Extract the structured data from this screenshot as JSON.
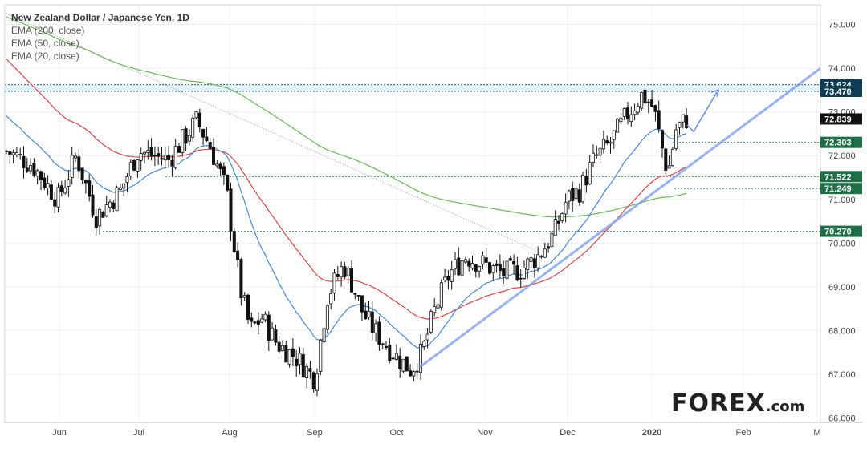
{
  "chart_data": {
    "type": "candlestick",
    "title": "New Zealand Dollar / Japanese Yen, 1D",
    "legend": [
      "EMA (200, close)",
      "EMA (50, close)",
      "EMA (20, close)"
    ],
    "y_ticks": [
      "75.000",
      "74.000",
      "73.000",
      "72.000",
      "71.000",
      "70.000",
      "69.000",
      "68.000",
      "67.000",
      "66.000"
    ],
    "x_ticks": [
      "Jun",
      "Jul",
      "Aug",
      "Sep",
      "Oct",
      "Nov",
      "Dec",
      "2020",
      "Feb",
      "M"
    ],
    "ylim": [
      65.9,
      75.45
    ],
    "levels": [
      {
        "label": "73.624",
        "value": 73.624,
        "style": "dark"
      },
      {
        "label": "73.470",
        "value": 73.47,
        "style": "dark"
      },
      {
        "label": "72.303",
        "value": 72.303,
        "style": "green"
      },
      {
        "label": "71.522",
        "value": 71.522,
        "style": "green"
      },
      {
        "label": "71.249",
        "value": 71.249,
        "style": "green"
      },
      {
        "label": "70.270",
        "value": 70.27,
        "style": "green"
      }
    ],
    "last_price": {
      "label": "72.839",
      "value": 72.839
    },
    "colors": {
      "ema200": "#66bb55",
      "ema50": "#dd4444",
      "ema20": "#4488dd",
      "trendline": "#7799ee",
      "levels": "#2a8a5a",
      "candles": "#111111"
    }
  },
  "brand": {
    "text": "FOREX",
    "suffix": ".com"
  }
}
